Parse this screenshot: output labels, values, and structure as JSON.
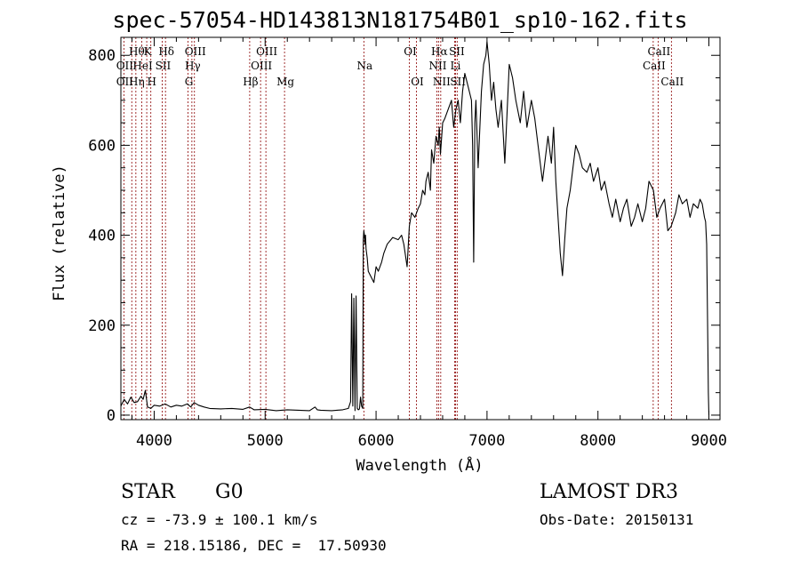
{
  "chart_data": {
    "type": "line",
    "title": "spec-57054-HD143813N181754B01_sp10-162.fits",
    "xlabel": "Wavelength (Å)",
    "ylabel": "Flux (relative)",
    "xlim": [
      3700,
      9100
    ],
    "ylim": [
      -10,
      840
    ],
    "xticks": [
      4000,
      5000,
      6000,
      7000,
      8000,
      9000
    ],
    "xtick_labels": [
      "4000",
      "5000",
      "6000",
      "7000",
      "8000",
      "9000"
    ],
    "yticks": [
      0,
      200,
      400,
      600,
      800
    ],
    "ytick_labels": [
      "0",
      "200",
      "400",
      "600",
      "800"
    ],
    "grid": false,
    "series": [
      {
        "color": "#000000",
        "x": [
          3700,
          3730,
          3760,
          3790,
          3820,
          3850,
          3880,
          3900,
          3920,
          3940,
          3970,
          4000,
          4050,
          4100,
          4150,
          4200,
          4250,
          4300,
          4330,
          4360,
          4400,
          4450,
          4500,
          4600,
          4700,
          4800,
          4860,
          4900,
          5000,
          5100,
          5200,
          5300,
          5400,
          5450,
          5470,
          5500,
          5600,
          5700,
          5750,
          5770,
          5780,
          5790,
          5800,
          5810,
          5820,
          5830,
          5840,
          5850,
          5860,
          5870,
          5880,
          5885,
          5890,
          5895,
          5900,
          5905,
          5910,
          5920,
          5930,
          5950,
          5980,
          6000,
          6020,
          6050,
          6070,
          6100,
          6150,
          6200,
          6230,
          6250,
          6280,
          6300,
          6320,
          6350,
          6380,
          6400,
          6420,
          6440,
          6450,
          6470,
          6490,
          6500,
          6520,
          6540,
          6560,
          6570,
          6580,
          6600,
          6620,
          6650,
          6680,
          6700,
          6720,
          6740,
          6760,
          6780,
          6800,
          6830,
          6860,
          6870,
          6880,
          6890,
          6900,
          6920,
          6950,
          6970,
          6990,
          7000,
          7020,
          7040,
          7060,
          7080,
          7100,
          7130,
          7160,
          7200,
          7230,
          7260,
          7300,
          7330,
          7360,
          7400,
          7430,
          7460,
          7500,
          7520,
          7550,
          7580,
          7600,
          7620,
          7640,
          7660,
          7680,
          7700,
          7720,
          7750,
          7780,
          7800,
          7830,
          7860,
          7900,
          7930,
          7960,
          8000,
          8030,
          8060,
          8100,
          8130,
          8160,
          8200,
          8230,
          8260,
          8300,
          8330,
          8360,
          8400,
          8430,
          8460,
          8500,
          8530,
          8560,
          8600,
          8630,
          8660,
          8700,
          8730,
          8760,
          8800,
          8830,
          8860,
          8900,
          8920,
          8940,
          8960,
          8970,
          8980,
          8990,
          8995,
          9000
        ],
        "y": [
          20,
          35,
          25,
          40,
          28,
          30,
          42,
          35,
          55,
          18,
          15,
          22,
          20,
          25,
          18,
          22,
          20,
          25,
          18,
          28,
          22,
          18,
          15,
          14,
          15,
          13,
          18,
          12,
          13,
          10,
          12,
          11,
          10,
          18,
          12,
          11,
          10,
          12,
          15,
          30,
          270,
          20,
          260,
          10,
          265,
          15,
          12,
          14,
          40,
          20,
          15,
          390,
          410,
          400,
          380,
          400,
          370,
          350,
          320,
          310,
          295,
          330,
          320,
          340,
          360,
          380,
          395,
          390,
          400,
          380,
          330,
          420,
          450,
          440,
          460,
          470,
          500,
          490,
          520,
          540,
          500,
          590,
          560,
          620,
          600,
          640,
          580,
          650,
          660,
          680,
          700,
          640,
          680,
          700,
          650,
          720,
          760,
          730,
          700,
          600,
          340,
          650,
          700,
          550,
          720,
          780,
          800,
          830,
          780,
          700,
          740,
          680,
          640,
          700,
          560,
          780,
          750,
          700,
          650,
          720,
          640,
          700,
          660,
          600,
          520,
          560,
          620,
          560,
          640,
          520,
          440,
          360,
          310,
          390,
          460,
          500,
          560,
          600,
          580,
          550,
          540,
          560,
          520,
          550,
          500,
          520,
          470,
          440,
          480,
          430,
          460,
          480,
          420,
          440,
          470,
          430,
          460,
          520,
          500,
          440,
          460,
          480,
          410,
          420,
          450,
          490,
          470,
          480,
          440,
          470,
          460,
          480,
          470,
          440,
          430,
          380,
          160,
          50,
          0
        ]
      }
    ],
    "lines": {
      "labels_row1": [
        {
          "x": 3835,
          "text": "Hθ"
        },
        {
          "x": 3933,
          "text": "K"
        },
        {
          "x": 4102,
          "text": "Hδ"
        },
        {
          "x": 4363,
          "text": "OIII"
        },
        {
          "x": 5007,
          "text": "OIII"
        },
        {
          "x": 6300,
          "text": "OI"
        },
        {
          "x": 6563,
          "text": "Hα"
        },
        {
          "x": 6720,
          "text": "SII"
        },
        {
          "x": 8542,
          "text": "CaII"
        }
      ],
      "labels_row2": [
        {
          "x": 3727,
          "text": "OII"
        },
        {
          "x": 3889,
          "text": "HeI"
        },
        {
          "x": 4072,
          "text": "SII"
        },
        {
          "x": 4340,
          "text": "Hγ"
        },
        {
          "x": 4959,
          "text": "OIII"
        },
        {
          "x": 5890,
          "text": "Na"
        },
        {
          "x": 6548,
          "text": "NII"
        },
        {
          "x": 6708,
          "text": "Li"
        },
        {
          "x": 8498,
          "text": "CaII"
        }
      ],
      "labels_row3": [
        {
          "x": 3727,
          "text": "OII"
        },
        {
          "x": 3970,
          "text": "H"
        },
        {
          "x": 3835,
          "text": "Hη"
        },
        {
          "x": 4305,
          "text": "G"
        },
        {
          "x": 4861,
          "text": "Hβ"
        },
        {
          "x": 5175,
          "text": "Mg"
        },
        {
          "x": 6364,
          "text": "OI"
        },
        {
          "x": 6583,
          "text": "NII"
        },
        {
          "x": 6730,
          "text": "SII"
        },
        {
          "x": 8662,
          "text": "CaII"
        }
      ],
      "positions": [
        3727,
        3798,
        3835,
        3889,
        3933,
        3970,
        4072,
        4102,
        4305,
        4340,
        4363,
        4861,
        4959,
        5007,
        5175,
        5890,
        6300,
        6364,
        6548,
        6563,
        6583,
        6708,
        6717,
        6731,
        8498,
        8542,
        8662
      ],
      "color": "#8b0000"
    }
  },
  "info": {
    "object_class": "STAR",
    "subclass": "G0",
    "survey": "LAMOST DR3",
    "cz": "cz = -73.9 ± 100.1 km/s",
    "obs_date": "Obs-Date: 20150131",
    "coords": "RA = 218.15186, DEC =  17.50930"
  }
}
